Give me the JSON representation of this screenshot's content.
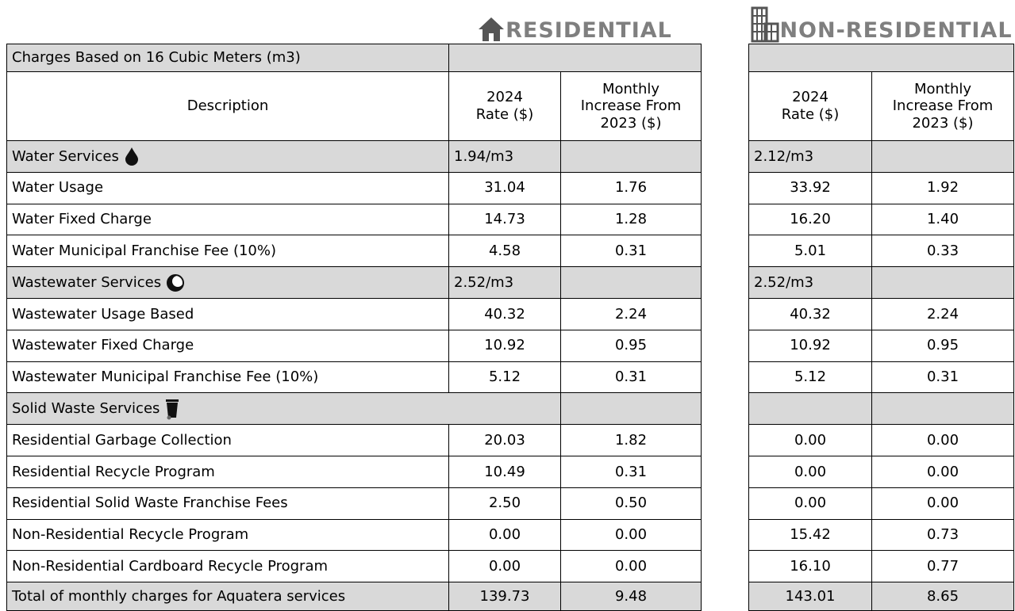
{
  "header": {
    "residential": "RESIDENTIAL",
    "non_residential": "NON-RESIDENTIAL"
  },
  "table": {
    "title": "Charges Based on 16 Cubic Meters (m3)",
    "columns": [
      "Description",
      "2024 Rate ($)",
      "Monthly Increase From 2023 ($)"
    ],
    "non_residential_columns": [
      "2024 Rate ($)",
      "Monthly Increase From 2023 ($)"
    ],
    "rows": [
      [
        "Water Services",
        "1.94/m3",
        null,
        "2.12/m3",
        null
      ],
      [
        "Water Usage",
        "31.04",
        "1.76",
        "33.92",
        "1.92"
      ],
      [
        "Water Fixed Charge",
        "14.73",
        "1.28",
        "16.20",
        "1.40"
      ],
      [
        "Water Municipal Franchise Fee (10%)",
        "4.58",
        "0.31",
        "5.01",
        "0.33"
      ],
      [
        "Wastewater Services",
        "2.52/m3",
        null,
        "2.52/m3",
        null
      ],
      [
        "Wastewater Usage Based",
        "40.32",
        "2.24",
        "40.32",
        "2.24"
      ],
      [
        "Wastewater Fixed Charge",
        "10.92",
        "0.95",
        "10.92",
        "0.95"
      ],
      [
        "Wastewater Municipal Franchise Fee (10%)",
        "5.12",
        "0.31",
        "5.12",
        "0.31"
      ],
      [
        "Solid Waste Services",
        null,
        null,
        null,
        null
      ],
      [
        "Residential Garbage Collection",
        "20.03",
        "1.82",
        "0.00",
        "0.00"
      ],
      [
        "Residential Recycle Program",
        "10.49",
        "0.31",
        "0.00",
        "0.00"
      ],
      [
        "Residential Solid Waste Franchise Fees",
        "2.50",
        "0.50",
        "0.00",
        "0.00"
      ],
      [
        "Non-Residential Recycle Program",
        "0.00",
        "0.00",
        "15.42",
        "0.73"
      ],
      [
        "Non-Residential Cardboard Recycle Program",
        "0.00",
        "0.00",
        "16.10",
        "0.77"
      ],
      [
        "Total of monthly charges for Aquatera services",
        "139.73",
        "9.48",
        "143.01",
        "8.65"
      ]
    ]
  }
}
